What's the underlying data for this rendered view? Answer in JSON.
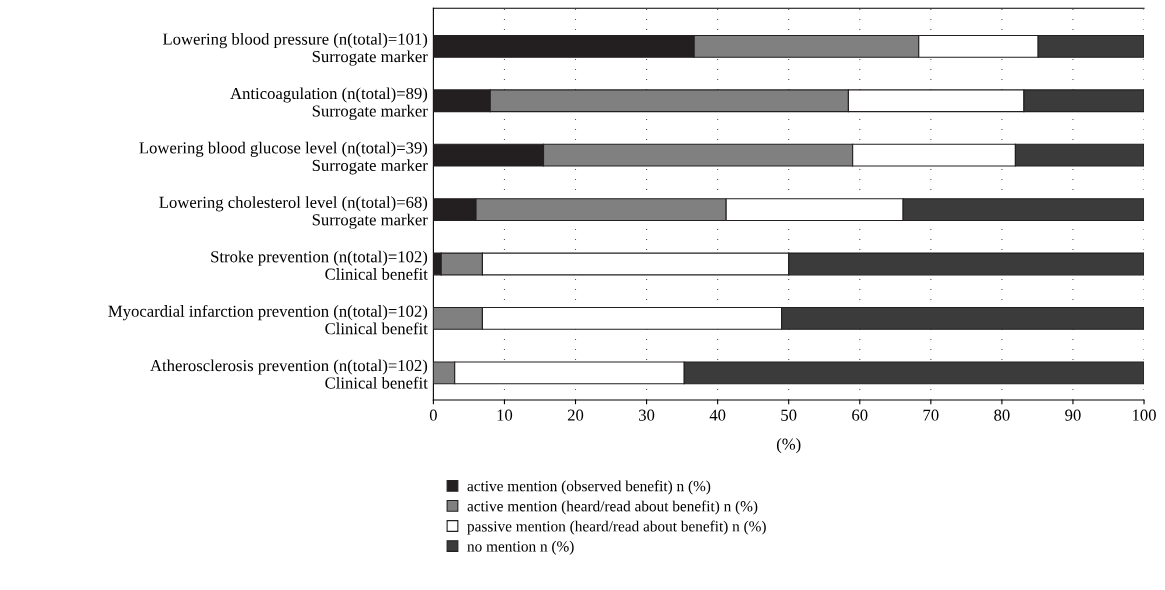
{
  "chart_data": {
    "type": "bar",
    "orientation": "horizontal",
    "stacked": true,
    "categories": [
      "Lowering blood pressure (n(total)=101)\nSurrogate marker",
      "Anticoagulation (n(total)=89)\nSurrogate marker",
      "Lowering blood glucose level (n(total)=39)\nSurrogate marker",
      "Lowering cholesterol level (n(total)=68)\nSurrogate marker",
      "Stroke prevention (n(total)=102)\nClinical benefit",
      "Myocardial infarction prevention (n(total)=102)\nClinical benefit",
      "Atherosclerosis prevention (n(total)=102)\nClinical benefit"
    ],
    "series": [
      {
        "name": "active mention (observed benefit) n (%)",
        "color": "#231f20",
        "values": [
          36.7,
          8.0,
          15.5,
          6.0,
          1.1,
          0,
          0
        ]
      },
      {
        "name": "active mention (heard/read about benefit) n (%)",
        "color": "#808080",
        "values": [
          31.6,
          50.4,
          43.5,
          35.2,
          5.8,
          6.9,
          3.0
        ]
      },
      {
        "name": "passive mention (heard/read about benefit) n (%)",
        "color": "#ffffff",
        "values": [
          16.8,
          24.7,
          22.9,
          24.9,
          43.1,
          42.1,
          32.3
        ]
      },
      {
        "name": "no mention n (%)",
        "color": "#3a3b3a",
        "values": [
          14.9,
          16.9,
          18.1,
          33.9,
          50.0,
          51.0,
          64.7
        ]
      }
    ],
    "xlabel": "(%)",
    "xlim": [
      0,
      100
    ],
    "xticks": [
      0,
      10,
      20,
      30,
      40,
      50,
      60,
      70,
      80,
      90,
      100
    ],
    "grid": "x",
    "legend": "bottom"
  }
}
